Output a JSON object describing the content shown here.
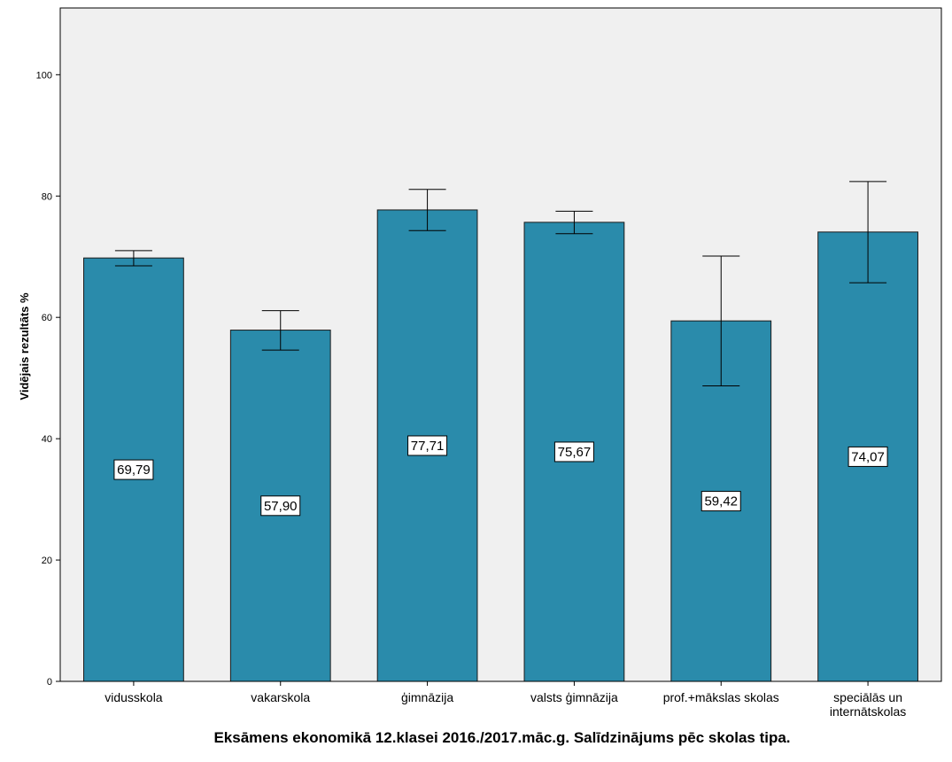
{
  "chart_data": {
    "type": "bar",
    "title": "Eksāmens ekonomikā 12.klasei 2016./2017.māc.g. Salīdzinājums pēc skolas tipa.",
    "xlabel": "",
    "ylabel": "Vidējais rezultāts %",
    "ylim": [
      0,
      111
    ],
    "yticks": [
      0,
      20,
      40,
      60,
      80,
      100
    ],
    "categories": [
      [
        "vidusskola"
      ],
      [
        "vakarskola"
      ],
      [
        "ģimnāzija"
      ],
      [
        "valsts ģimnāzija"
      ],
      [
        "prof.+mākslas skolas"
      ],
      [
        "speciālās un",
        "internātskolas"
      ]
    ],
    "values": [
      69.79,
      57.9,
      77.71,
      75.67,
      59.42,
      74.07
    ],
    "value_labels": [
      "69,79",
      "57,90",
      "77,71",
      "75,67",
      "59,42",
      "74,07"
    ],
    "error_low": [
      68.5,
      54.6,
      74.3,
      73.8,
      48.7,
      65.7
    ],
    "error_high": [
      71.0,
      61.1,
      81.1,
      77.5,
      70.1,
      82.4
    ],
    "grid": false,
    "legend": "none",
    "colors": {
      "bar": "#2a8bab",
      "bar_stroke": "#1a1a1a",
      "plot_bg": "#f0f0f0",
      "axis": "#000000"
    }
  }
}
